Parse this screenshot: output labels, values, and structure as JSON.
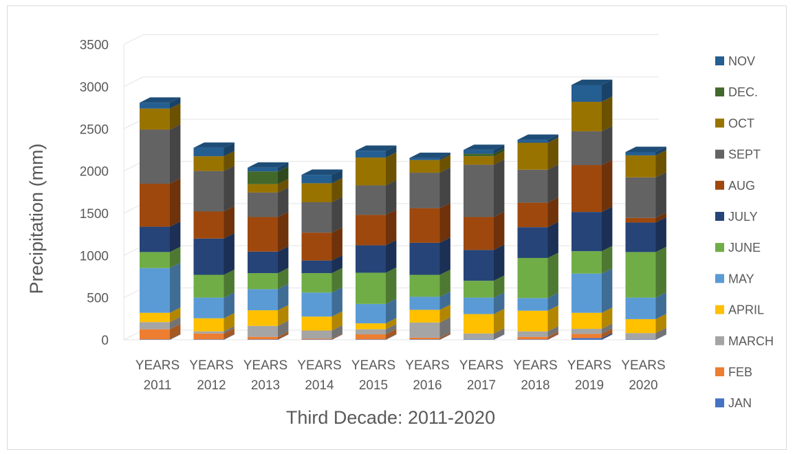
{
  "chart_data": {
    "type": "bar",
    "stacked": true,
    "three_d": true,
    "title": "",
    "xlabel": "Third Decade: 2011-2020",
    "ylabel": "Precipitation (mm)",
    "ylim": [
      0,
      3500
    ],
    "yticks": [
      0,
      500,
      1000,
      1500,
      2000,
      2500,
      3000,
      3500
    ],
    "grid": true,
    "legend_position": "right",
    "categories": [
      [
        "YEARS",
        "2011"
      ],
      [
        "YEARS",
        "2012"
      ],
      [
        "YEARS",
        "2013"
      ],
      [
        "YEARS",
        "2014"
      ],
      [
        "YEARS",
        "2015"
      ],
      [
        "YEARS",
        "2016"
      ],
      [
        "YEARS",
        "2017"
      ],
      [
        "YEARS",
        "2018"
      ],
      [
        "YEARS",
        "2019"
      ],
      [
        "YEARS",
        "2020"
      ]
    ],
    "series": [
      {
        "name": "JAN",
        "color": "#4472c4",
        "values": [
          5,
          5,
          5,
          5,
          5,
          5,
          5,
          5,
          20,
          5
        ]
      },
      {
        "name": "FEB",
        "color": "#ed7d31",
        "values": [
          120,
          70,
          30,
          10,
          60,
          20,
          0,
          30,
          50,
          0
        ]
      },
      {
        "name": "MARCH",
        "color": "#a5a5a5",
        "values": [
          85,
          25,
          130,
          95,
          60,
          180,
          70,
          65,
          60,
          75
        ]
      },
      {
        "name": "APRIL",
        "color": "#ffc000",
        "values": [
          110,
          155,
          185,
          165,
          70,
          150,
          230,
          245,
          190,
          165
        ]
      },
      {
        "name": "MAY",
        "color": "#5b9bd5",
        "values": [
          530,
          245,
          250,
          285,
          230,
          155,
          195,
          150,
          465,
          255
        ]
      },
      {
        "name": "JUNE",
        "color": "#70ad47",
        "values": [
          190,
          270,
          190,
          230,
          370,
          260,
          200,
          475,
          265,
          540
        ]
      },
      {
        "name": "JULY",
        "color": "#264478",
        "values": [
          300,
          430,
          255,
          150,
          325,
          380,
          365,
          365,
          465,
          350
        ]
      },
      {
        "name": "AUG",
        "color": "#9e480e",
        "values": [
          510,
          320,
          410,
          330,
          360,
          410,
          390,
          290,
          555,
          55
        ]
      },
      {
        "name": "SEPT",
        "color": "#636363",
        "values": [
          640,
          480,
          290,
          360,
          350,
          420,
          620,
          390,
          400,
          480
        ]
      },
      {
        "name": "OCT",
        "color": "#997300",
        "values": [
          250,
          175,
          100,
          225,
          330,
          150,
          100,
          320,
          350,
          260
        ]
      },
      {
        "name": "DEC.",
        "color": "#43682b",
        "values": [
          0,
          0,
          150,
          0,
          0,
          0,
          30,
          0,
          0,
          0
        ]
      },
      {
        "name": "NOV",
        "color": "#255e91",
        "values": [
          70,
          100,
          45,
          100,
          80,
          25,
          45,
          35,
          200,
          40
        ]
      }
    ],
    "legend_order": [
      "NOV",
      "DEC.",
      "OCT",
      "SEPT",
      "AUG",
      "JULY",
      "JUNE",
      "MAY",
      "APRIL",
      "MARCH",
      "FEB",
      "JAN"
    ]
  }
}
